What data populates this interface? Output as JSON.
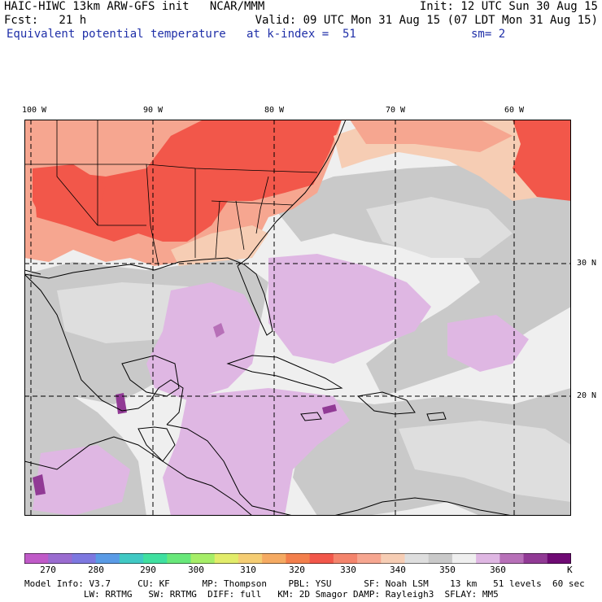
{
  "header": {
    "line1_left": "HAIC-HIWC 13km ARW-GFS init   NCAR/MMM",
    "line1_right": "Init: 12 UTC Sun 30 Aug 15",
    "line2_left": "Fcst:   21 h",
    "line2_right": "Valid: 09 UTC Mon 31 Aug 15 (07 LDT Mon 31 Aug 15)",
    "field_name": "Equivalent potential temperature",
    "level": "at k-index =  51",
    "smoothing": "sm= 2"
  },
  "map": {
    "lon_labels": [
      "100 W",
      "90 W",
      "80 W",
      "70 W",
      "60 W"
    ],
    "lon_values": [
      -100,
      -90,
      -80,
      -70,
      -60
    ],
    "lat_labels": [
      "30 N",
      "20 N"
    ],
    "lat_values": [
      30,
      20
    ],
    "extent": {
      "lon_min": -100.2,
      "lon_max": -55.3,
      "lat_min": 10.8,
      "lat_max": 41.6
    }
  },
  "colorbar": {
    "ticks": [
      "270",
      "280",
      "290",
      "300",
      "310",
      "320",
      "330",
      "340",
      "350",
      "360"
    ],
    "unit": "K",
    "colors": [
      "#c05ac8",
      "#9a6cd0",
      "#7d78e0",
      "#5a9be6",
      "#40c9c4",
      "#3fe0a0",
      "#68e87a",
      "#a6ee68",
      "#e2ec6a",
      "#f5cd73",
      "#f5aa62",
      "#f37f4c",
      "#f2574a",
      "#f4846c",
      "#f6a690",
      "#f6cdb4",
      "#dedede",
      "#c9c9c9",
      "#efefef",
      "#dfb7e3",
      "#b770b8",
      "#913a95",
      "#6f0a74"
    ]
  },
  "footer": {
    "line1": "Model Info: V3.7     CU: KF      MP: Thompson    PBL: YSU      SF: Noah LSM    13 km   51 levels  60 sec",
    "line2": "           LW: RRTMG   SW: RRTMG  DIFF: full   KM: 2D Smagor DAMP: Rayleigh3  SFLAY: MM5"
  }
}
